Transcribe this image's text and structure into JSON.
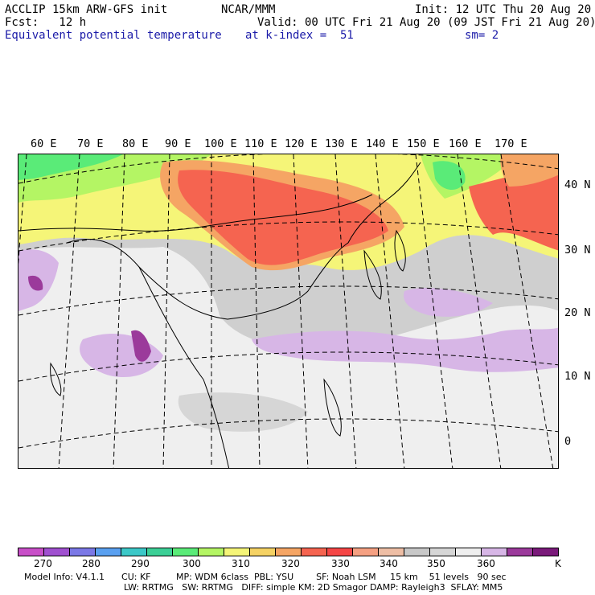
{
  "header": {
    "model_line": "ACCLIP 15km ARW-GFS init",
    "org": "NCAR/MMM",
    "init": "Init: 12 UTC Thu 20 Aug 20",
    "fcst": "Fcst:   12 h",
    "valid": "Valid: 00 UTC Fri 21 Aug 20 (09 JST Fri 21 Aug 20)",
    "field": "Equivalent potential temperature",
    "level": "at k-index =  51",
    "smooth": "sm= 2"
  },
  "map": {
    "lon_labels": [
      "60 E",
      "70 E",
      "80 E",
      "90 E",
      "100 E",
      "110 E",
      "120 E",
      "130 E",
      "140 E",
      "150 E",
      "160 E",
      "170 E"
    ],
    "lat_labels": [
      "40 N",
      "30 N",
      "20 N",
      "10 N",
      "0"
    ]
  },
  "colorbar": {
    "colors": [
      "#c84fc8",
      "#a050d0",
      "#7b78e6",
      "#5aa0f0",
      "#3cc8c8",
      "#3ccf96",
      "#5aeb78",
      "#b4f564",
      "#f5f578",
      "#f5d264",
      "#f5a564",
      "#f56450",
      "#f54646",
      "#f5a082",
      "#eebea5",
      "#c8c8c8",
      "#d6d6d6",
      "#efefef",
      "#d7b6e6",
      "#9b3a9b",
      "#7a1a7a"
    ],
    "labels": [
      "270",
      "280",
      "290",
      "300",
      "310",
      "320",
      "330",
      "340",
      "350",
      "360"
    ],
    "unit": "K"
  },
  "footer": {
    "line1": "Model Info: V4.1.1      CU: KF         MP: WDM 6class  PBL: YSU        SF: Noah LSM     15 km    51 levels   90 sec",
    "line2": "LW: RRTMG   SW: RRTMG   DIFF: simple KM: 2D Smagor DAMP: Rayleigh3  SFLAY: MM5"
  }
}
